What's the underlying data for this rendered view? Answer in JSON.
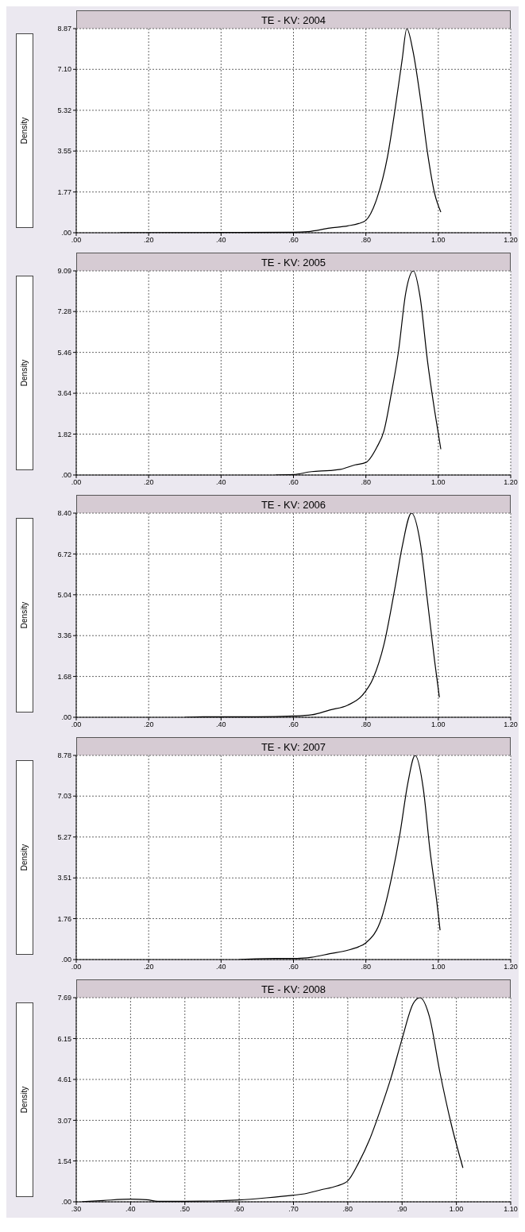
{
  "chart_data": [
    {
      "type": "line",
      "title": "TE - KV: 2004",
      "ylabel": "Density",
      "grid": true,
      "x": [
        0.12,
        0.4,
        0.6,
        0.64,
        0.7,
        0.75,
        0.78,
        0.8,
        0.83,
        0.86,
        0.88,
        0.9,
        0.913,
        0.93,
        0.95,
        0.97,
        0.99,
        1.007
      ],
      "series": [
        {
          "color": "#000000",
          "values": [
            0,
            0.01,
            0.02,
            0.05,
            0.2,
            0.3,
            0.4,
            0.54,
            1.47,
            3.33,
            5.3,
            7.5,
            8.87,
            7.9,
            5.9,
            3.5,
            1.7,
            0.9
          ]
        }
      ],
      "xlim": [
        0,
        1.2
      ],
      "xticks": [
        {
          "value": 0,
          "label": ".00"
        },
        {
          "value": 0.2,
          "label": ".20"
        },
        {
          "value": 0.4,
          "label": ".40"
        },
        {
          "value": 0.6,
          "label": ".60"
        },
        {
          "value": 0.8,
          "label": ".80"
        },
        {
          "value": 1.0,
          "label": "1.00"
        },
        {
          "value": 1.2,
          "label": "1.20"
        }
      ],
      "ylim": [
        0,
        8.87
      ],
      "yticks": [
        {
          "value": 0,
          "label": ".00"
        },
        {
          "value": 1.77,
          "label": "1.77"
        },
        {
          "value": 3.55,
          "label": "3.55"
        },
        {
          "value": 5.32,
          "label": "5.32"
        },
        {
          "value": 7.1,
          "label": "7.10"
        },
        {
          "value": 8.87,
          "label": "8.87"
        }
      ]
    },
    {
      "type": "line",
      "title": "TE - KV: 2005",
      "ylabel": "Density",
      "grid": true,
      "x": [
        0.55,
        0.6,
        0.65,
        0.7,
        0.73,
        0.77,
        0.8,
        0.83,
        0.85,
        0.87,
        0.89,
        0.91,
        0.931,
        0.95,
        0.97,
        0.99,
        1.007
      ],
      "series": [
        {
          "color": "#000000",
          "values": [
            0,
            0.02,
            0.15,
            0.2,
            0.25,
            0.45,
            0.56,
            1.23,
            1.97,
            3.6,
            5.5,
            8.1,
            9.09,
            7.9,
            5.1,
            2.85,
            1.15
          ]
        }
      ],
      "xlim": [
        0,
        1.2
      ],
      "xticks": [
        {
          "value": 0,
          "label": ".00"
        },
        {
          "value": 0.2,
          "label": ".20"
        },
        {
          "value": 0.4,
          "label": ".40"
        },
        {
          "value": 0.6,
          "label": ".60"
        },
        {
          "value": 0.8,
          "label": ".80"
        },
        {
          "value": 1.0,
          "label": "1.00"
        },
        {
          "value": 1.2,
          "label": "1.20"
        }
      ],
      "ylim": [
        0,
        9.09
      ],
      "yticks": [
        {
          "value": 0,
          "label": ".00"
        },
        {
          "value": 1.82,
          "label": "1.82"
        },
        {
          "value": 3.64,
          "label": "3.64"
        },
        {
          "value": 5.46,
          "label": "5.46"
        },
        {
          "value": 7.28,
          "label": "7.28"
        },
        {
          "value": 9.09,
          "label": "9.09"
        }
      ]
    },
    {
      "type": "line",
      "title": "TE - KV: 2006",
      "ylabel": "Density",
      "grid": true,
      "x": [
        0.3,
        0.35,
        0.5,
        0.6,
        0.65,
        0.7,
        0.75,
        0.79,
        0.82,
        0.85,
        0.88,
        0.9,
        0.926,
        0.95,
        0.97,
        0.99,
        1.003
      ],
      "series": [
        {
          "color": "#000000",
          "values": [
            0,
            0.02,
            0.02,
            0.05,
            0.1,
            0.3,
            0.5,
            0.9,
            1.6,
            3.0,
            5.3,
            7.0,
            8.4,
            7.2,
            4.8,
            2.3,
            0.82
          ]
        }
      ],
      "xlim": [
        0,
        1.2
      ],
      "xticks": [
        {
          "value": 0,
          "label": ".00"
        },
        {
          "value": 0.2,
          "label": ".20"
        },
        {
          "value": 0.4,
          "label": ".40"
        },
        {
          "value": 0.6,
          "label": ".60"
        },
        {
          "value": 0.8,
          "label": ".80"
        },
        {
          "value": 1.0,
          "label": "1.00"
        },
        {
          "value": 1.2,
          "label": "1.20"
        }
      ],
      "ylim": [
        0,
        8.4
      ],
      "yticks": [
        {
          "value": 0,
          "label": ".00"
        },
        {
          "value": 1.68,
          "label": "1.68"
        },
        {
          "value": 3.36,
          "label": "3.36"
        },
        {
          "value": 5.04,
          "label": "5.04"
        },
        {
          "value": 6.72,
          "label": "6.72"
        },
        {
          "value": 8.4,
          "label": "8.40"
        }
      ]
    },
    {
      "type": "line",
      "title": "TE - KV: 2007",
      "ylabel": "Density",
      "grid": true,
      "x": [
        0.45,
        0.55,
        0.61,
        0.65,
        0.7,
        0.75,
        0.78,
        0.8,
        0.844,
        0.872,
        0.894,
        0.916,
        0.936,
        0.959,
        0.977,
        0.995,
        1.005
      ],
      "series": [
        {
          "color": "#000000",
          "values": [
            0,
            0.05,
            0.05,
            0.1,
            0.25,
            0.4,
            0.55,
            0.72,
            1.82,
            3.6,
            5.4,
            7.6,
            8.78,
            7.3,
            4.7,
            2.6,
            1.26
          ]
        }
      ],
      "xlim": [
        0,
        1.2
      ],
      "xticks": [
        {
          "value": 0,
          "label": ".00"
        },
        {
          "value": 0.2,
          "label": ".20"
        },
        {
          "value": 0.4,
          "label": ".40"
        },
        {
          "value": 0.6,
          "label": ".60"
        },
        {
          "value": 0.8,
          "label": ".80"
        },
        {
          "value": 1.0,
          "label": "1.00"
        },
        {
          "value": 1.2,
          "label": "1.20"
        }
      ],
      "ylim": [
        0,
        8.78
      ],
      "yticks": [
        {
          "value": 0,
          "label": ".00"
        },
        {
          "value": 1.76,
          "label": "1.76"
        },
        {
          "value": 3.51,
          "label": "3.51"
        },
        {
          "value": 5.27,
          "label": "5.27"
        },
        {
          "value": 7.03,
          "label": "7.03"
        },
        {
          "value": 8.78,
          "label": "8.78"
        }
      ]
    },
    {
      "type": "line",
      "title": "TE - KV: 2008",
      "ylabel": "Density",
      "grid": true,
      "x": [
        0.31,
        0.35,
        0.4,
        0.43,
        0.45,
        0.5,
        0.55,
        0.6,
        0.65,
        0.7,
        0.72,
        0.75,
        0.78,
        0.8,
        0.82,
        0.84,
        0.86,
        0.88,
        0.9,
        0.92,
        0.933,
        0.95,
        0.97,
        0.99,
        1.012
      ],
      "series": [
        {
          "color": "#000000",
          "values": [
            0,
            0.05,
            0.1,
            0.08,
            0.02,
            0.02,
            0.03,
            0.07,
            0.15,
            0.25,
            0.3,
            0.45,
            0.6,
            0.79,
            1.47,
            2.34,
            3.46,
            4.7,
            6.14,
            7.45,
            7.69,
            7.0,
            4.84,
            2.97,
            1.28
          ]
        }
      ],
      "xlim": [
        0.3,
        1.1
      ],
      "xticks": [
        {
          "value": 0.3,
          "label": ".30"
        },
        {
          "value": 0.4,
          "label": ".40"
        },
        {
          "value": 0.5,
          "label": ".50"
        },
        {
          "value": 0.6,
          "label": ".60"
        },
        {
          "value": 0.7,
          "label": ".70"
        },
        {
          "value": 0.8,
          "label": ".80"
        },
        {
          "value": 0.9,
          "label": ".90"
        },
        {
          "value": 1.0,
          "label": "1.00"
        },
        {
          "value": 1.1,
          "label": "1.10"
        }
      ],
      "ylim": [
        0,
        7.69
      ],
      "yticks": [
        {
          "value": 0,
          "label": ".00"
        },
        {
          "value": 1.54,
          "label": "1.54"
        },
        {
          "value": 3.07,
          "label": "3.07"
        },
        {
          "value": 4.61,
          "label": "4.61"
        },
        {
          "value": 6.15,
          "label": "6.15"
        },
        {
          "value": 7.69,
          "label": "7.69"
        }
      ]
    }
  ]
}
